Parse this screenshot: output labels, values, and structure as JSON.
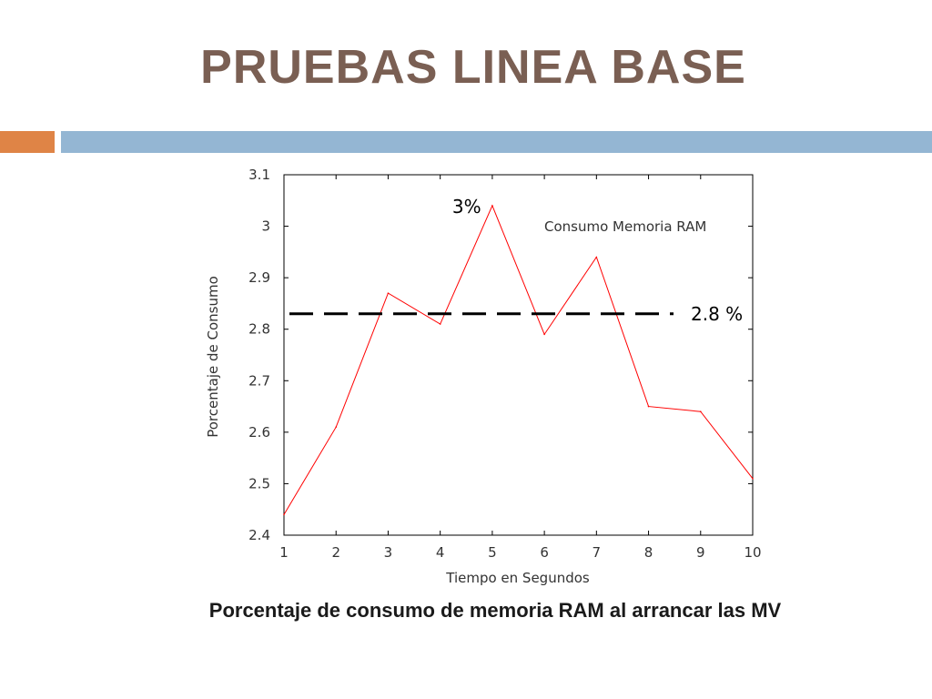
{
  "slide": {
    "title": "PRUEBAS LINEA BASE",
    "caption": "Porcentaje de consumo de memoria RAM al arrancar las MV",
    "colors": {
      "title": "#7a5f53",
      "accent_bar": "#df8446",
      "main_bar": "#94b6d3"
    }
  },
  "chart_data": {
    "type": "line",
    "xlabel": "Tiempo en Segundos",
    "ylabel": "Porcentaje de Consumo",
    "xlim": [
      1,
      10
    ],
    "ylim": [
      2.4,
      3.1
    ],
    "x_ticks": [
      "1",
      "2",
      "3",
      "4",
      "5",
      "6",
      "7",
      "8",
      "9",
      "10"
    ],
    "y_ticks": [
      "2.4",
      "2.5",
      "2.6",
      "2.7",
      "2.8",
      "2.9",
      "3",
      "3.1"
    ],
    "legend_position": "top-right",
    "grid": false,
    "series": [
      {
        "name": "Consumo Memoria RAM",
        "color": "#ff0000",
        "x": [
          1,
          2,
          3,
          4,
          5,
          6,
          7,
          8,
          9,
          10
        ],
        "values": [
          2.44,
          2.61,
          2.87,
          2.81,
          3.04,
          2.79,
          2.94,
          2.65,
          2.64,
          2.51
        ]
      }
    ],
    "reference_line": {
      "value": 2.83,
      "style": "dashed",
      "color": "#000000",
      "label": "2.8 %"
    },
    "annotations": [
      {
        "text": "3%",
        "x": 5,
        "y": 3.04
      }
    ]
  }
}
